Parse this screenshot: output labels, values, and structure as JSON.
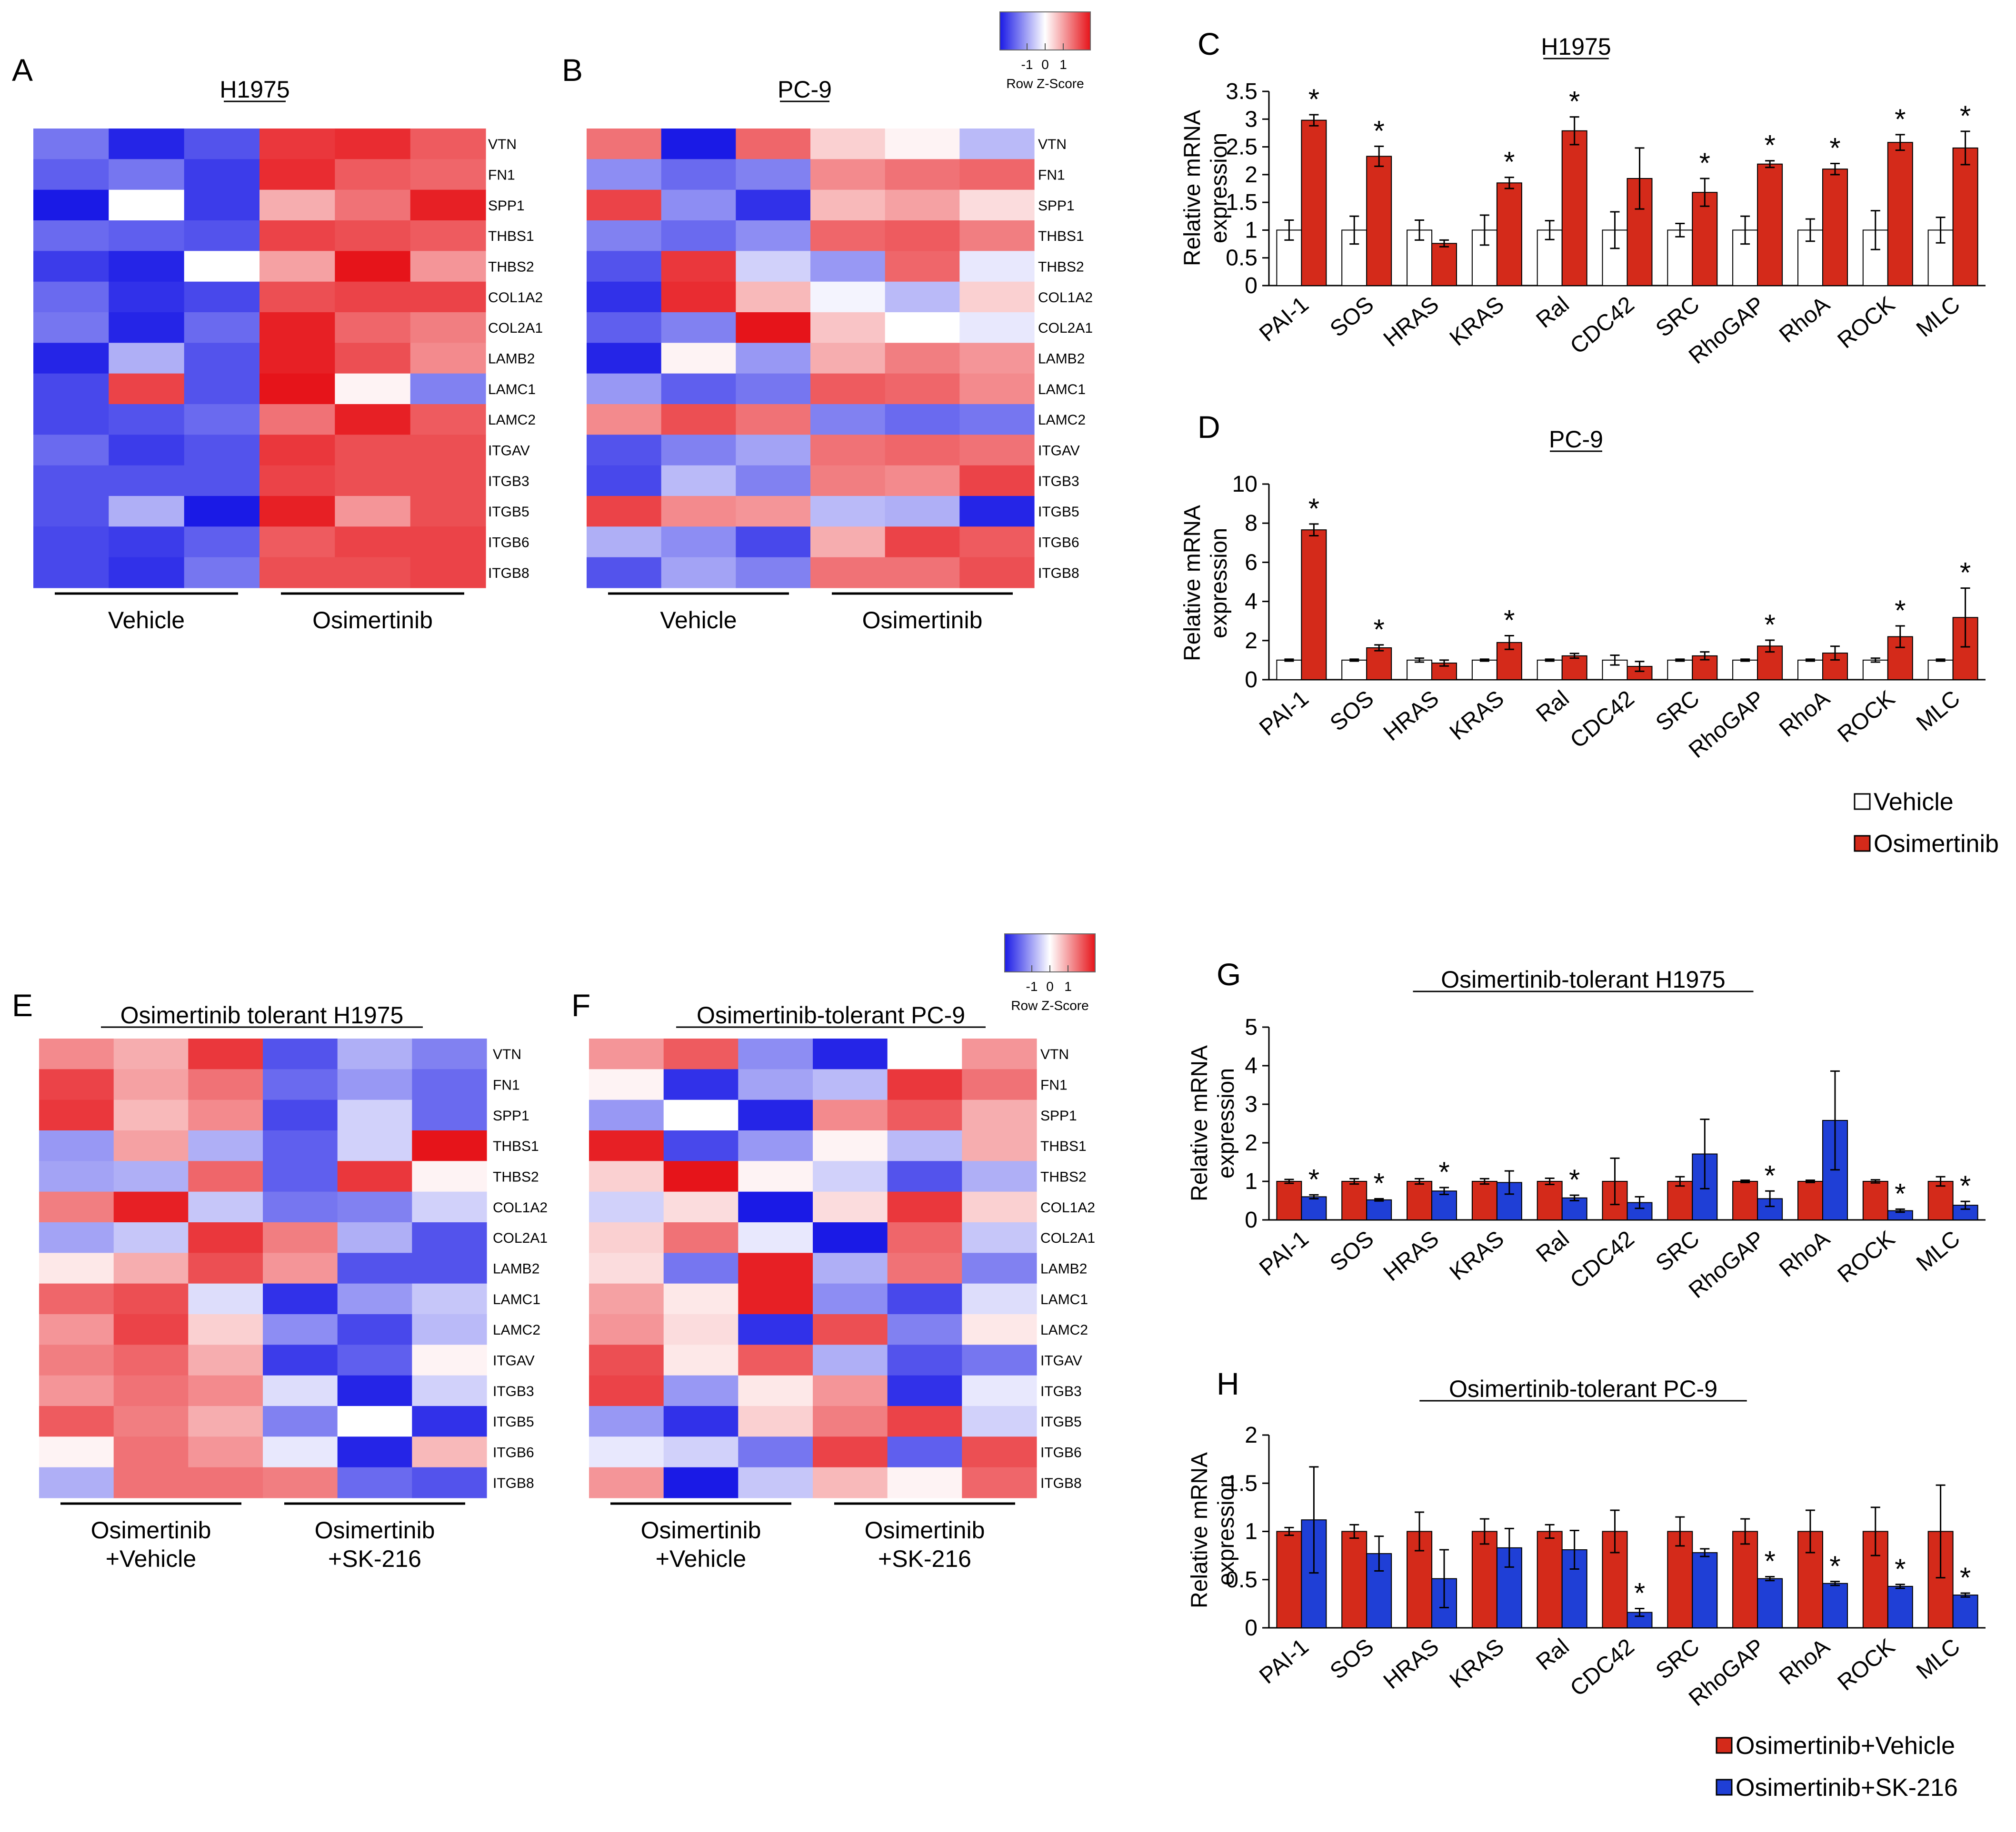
{
  "colors": {
    "low": "#1a1ae6",
    "mid": "#ffffff",
    "high": "#e6141a",
    "vehicle_bar": "#ffffff",
    "osimertinib_bar": "#d42a1a",
    "sk216_bar": "#1f3fd6",
    "axis": "#000000"
  },
  "colorkeys": [
    {
      "label": "Row Z-Score",
      "ticks": [
        "-1",
        "0",
        "1"
      ]
    },
    {
      "label": "Row Z-Score",
      "ticks": [
        "-1",
        "0",
        "1"
      ]
    }
  ],
  "chart_data": [
    {
      "type": "heatmap",
      "panel": "A",
      "title": "H1975",
      "rows": [
        "VTN",
        "FN1",
        "SPP1",
        "THBS1",
        "THBS2",
        "COL1A2",
        "COL2A1",
        "LAMB2",
        "LAMC1",
        "LAMC2",
        "ITGAV",
        "ITGB3",
        "ITGB5",
        "ITGB6",
        "ITGB8"
      ],
      "groups": [
        {
          "label": "Vehicle",
          "columns": 3
        },
        {
          "label": "Osimertinib",
          "columns": 3
        }
      ],
      "values": [
        [
          -0.6,
          -0.95,
          -0.75,
          0.85,
          0.9,
          0.7
        ],
        [
          -0.7,
          -0.6,
          -0.85,
          0.9,
          0.7,
          0.65
        ],
        [
          -1,
          0,
          -0.85,
          0.35,
          0.6,
          0.95
        ],
        [
          -0.65,
          -0.7,
          -0.75,
          0.8,
          0.75,
          0.7
        ],
        [
          -0.85,
          -0.95,
          0,
          0.4,
          1,
          0.45
        ],
        [
          -0.65,
          -0.9,
          -0.8,
          0.75,
          0.8,
          0.8
        ],
        [
          -0.6,
          -0.95,
          -0.65,
          0.95,
          0.65,
          0.55
        ],
        [
          -0.95,
          -0.35,
          -0.75,
          0.95,
          0.75,
          0.5
        ],
        [
          -0.8,
          0.8,
          -0.75,
          1,
          0.05,
          -0.55
        ],
        [
          -0.8,
          -0.75,
          -0.65,
          0.6,
          0.95,
          0.7
        ],
        [
          -0.65,
          -0.85,
          -0.75,
          0.85,
          0.75,
          0.75
        ],
        [
          -0.75,
          -0.75,
          -0.75,
          0.8,
          0.75,
          0.75
        ],
        [
          -0.75,
          -0.35,
          -1,
          0.95,
          0.45,
          0.75
        ],
        [
          -0.8,
          -0.85,
          -0.7,
          0.7,
          0.8,
          0.8
        ],
        [
          -0.8,
          -0.9,
          -0.6,
          0.75,
          0.75,
          0.8
        ]
      ]
    },
    {
      "type": "heatmap",
      "panel": "B",
      "title": "PC-9",
      "rows": [
        "VTN",
        "FN1",
        "SPP1",
        "THBS1",
        "THBS2",
        "COL1A2",
        "COL2A1",
        "LAMB2",
        "LAMC1",
        "LAMC2",
        "ITGAV",
        "ITGB3",
        "ITGB5",
        "ITGB6",
        "ITGB8"
      ],
      "groups": [
        {
          "label": "Vehicle",
          "columns": 3
        },
        {
          "label": "Osimertinib",
          "columns": 3
        }
      ],
      "values": [
        [
          0.6,
          -1,
          0.65,
          0.2,
          0.05,
          -0.3
        ],
        [
          -0.5,
          -0.65,
          -0.55,
          0.5,
          0.6,
          0.65
        ],
        [
          0.8,
          -0.5,
          -0.9,
          0.3,
          0.4,
          0.15
        ],
        [
          -0.55,
          -0.65,
          -0.5,
          0.65,
          0.7,
          0.55
        ],
        [
          -0.75,
          0.85,
          -0.2,
          -0.45,
          0.65,
          -0.1
        ],
        [
          -0.9,
          0.9,
          0.3,
          -0.05,
          -0.3,
          0.2
        ],
        [
          -0.7,
          -0.55,
          1,
          0.25,
          0,
          -0.1
        ],
        [
          -0.95,
          0.05,
          -0.45,
          0.35,
          0.55,
          0.45
        ],
        [
          -0.45,
          -0.7,
          -0.6,
          0.7,
          0.65,
          0.5
        ],
        [
          0.5,
          0.75,
          0.6,
          -0.55,
          -0.65,
          -0.6
        ],
        [
          -0.75,
          -0.55,
          -0.4,
          0.6,
          0.65,
          0.6
        ],
        [
          -0.8,
          -0.3,
          -0.55,
          0.55,
          0.5,
          0.8
        ],
        [
          0.8,
          0.5,
          0.45,
          -0.3,
          -0.35,
          -0.95
        ],
        [
          -0.35,
          -0.5,
          -0.8,
          0.35,
          0.8,
          0.7
        ],
        [
          -0.75,
          -0.4,
          -0.55,
          0.6,
          0.6,
          0.75
        ]
      ]
    },
    {
      "type": "bar",
      "panel": "C",
      "title": "H1975",
      "categories": [
        "PAI-1",
        "SOS",
        "HRAS",
        "KRAS",
        "Ral",
        "CDC42",
        "SRC",
        "RhoGAP",
        "RhoA",
        "ROCK",
        "MLC"
      ],
      "ylabel": "Relative mRNA expression",
      "ylim": [
        0,
        3.5
      ],
      "yticks": [
        "0",
        "0.5",
        "1",
        "1.5",
        "2",
        "2.5",
        "3",
        "3.5"
      ],
      "series": [
        {
          "name": "Vehicle",
          "values": [
            1,
            1,
            1,
            1,
            1,
            1,
            1,
            1,
            1,
            1,
            1
          ],
          "errors": [
            0.18,
            0.25,
            0.18,
            0.27,
            0.17,
            0.33,
            0.12,
            0.25,
            0.2,
            0.35,
            0.23
          ]
        },
        {
          "name": "Osimertinib",
          "values": [
            2.98,
            2.33,
            0.76,
            1.85,
            2.79,
            1.93,
            1.68,
            2.19,
            2.1,
            2.58,
            2.48
          ],
          "errors": [
            0.1,
            0.18,
            0.06,
            0.1,
            0.25,
            0.55,
            0.25,
            0.06,
            0.1,
            0.14,
            0.3
          ]
        }
      ],
      "significant": [
        "Osimertinib",
        [
          true,
          true,
          false,
          true,
          true,
          false,
          true,
          true,
          true,
          true,
          true
        ]
      ]
    },
    {
      "type": "bar",
      "panel": "D",
      "title": "PC-9",
      "categories": [
        "PAI-1",
        "SOS",
        "HRAS",
        "KRAS",
        "Ral",
        "CDC42",
        "SRC",
        "RhoGAP",
        "RhoA",
        "ROCK",
        "MLC"
      ],
      "ylabel": "Relative mRNA expression",
      "ylim": [
        0,
        10
      ],
      "yticks": [
        "0",
        "2",
        "4",
        "6",
        "8",
        "10"
      ],
      "series": [
        {
          "name": "Vehicle",
          "values": [
            1,
            1,
            1,
            1,
            1,
            1,
            1,
            1,
            1,
            1,
            1
          ],
          "errors": [
            0.05,
            0.05,
            0.1,
            0.05,
            0.05,
            0.25,
            0.05,
            0.05,
            0.05,
            0.1,
            0.05
          ]
        },
        {
          "name": "Osimertinib",
          "values": [
            7.66,
            1.63,
            0.85,
            1.9,
            1.22,
            0.68,
            1.22,
            1.72,
            1.36,
            2.2,
            3.18
          ],
          "errors": [
            0.3,
            0.15,
            0.15,
            0.35,
            0.12,
            0.25,
            0.2,
            0.3,
            0.35,
            0.55,
            1.5
          ]
        }
      ],
      "significant": [
        "Osimertinib",
        [
          true,
          true,
          false,
          true,
          false,
          false,
          false,
          true,
          false,
          true,
          true
        ]
      ],
      "legend": [
        "Vehicle",
        "Osimertinib"
      ]
    },
    {
      "type": "heatmap",
      "panel": "E",
      "title": "Osimertinib tolerant H1975",
      "rows": [
        "VTN",
        "FN1",
        "SPP1",
        "THBS1",
        "THBS2",
        "COL1A2",
        "COL2A1",
        "LAMB2",
        "LAMC1",
        "LAMC2",
        "ITGAV",
        "ITGB3",
        "ITGB5",
        "ITGB6",
        "ITGB8"
      ],
      "groups": [
        {
          "label": "Osimertinib +Vehicle",
          "columns": 3
        },
        {
          "label": "Osimertinib +SK-216",
          "columns": 3
        }
      ],
      "values": [
        [
          0.5,
          0.35,
          0.85,
          -0.75,
          -0.35,
          -0.55
        ],
        [
          0.8,
          0.4,
          0.6,
          -0.65,
          -0.45,
          -0.65
        ],
        [
          0.85,
          0.3,
          0.5,
          -0.8,
          -0.2,
          -0.65
        ],
        [
          -0.45,
          0.4,
          -0.35,
          -0.7,
          -0.2,
          1
        ],
        [
          -0.4,
          -0.35,
          0.65,
          -0.7,
          0.85,
          0.05
        ],
        [
          0.55,
          0.95,
          -0.25,
          -0.6,
          -0.55,
          -0.2
        ],
        [
          -0.4,
          -0.25,
          0.85,
          0.55,
          -0.35,
          -0.75
        ],
        [
          0.1,
          0.35,
          0.75,
          0.45,
          -0.75,
          -0.75
        ],
        [
          0.65,
          0.75,
          -0.15,
          -0.9,
          -0.45,
          -0.25
        ],
        [
          0.45,
          0.8,
          0.2,
          -0.5,
          -0.8,
          -0.3
        ],
        [
          0.55,
          0.65,
          0.35,
          -0.85,
          -0.7,
          0.05
        ],
        [
          0.45,
          0.6,
          0.5,
          -0.15,
          -0.95,
          -0.2
        ],
        [
          0.7,
          0.55,
          0.35,
          -0.55,
          0,
          -0.9
        ],
        [
          0.05,
          0.6,
          0.45,
          -0.1,
          -0.95,
          0.3
        ],
        [
          -0.35,
          0.6,
          0.6,
          0.55,
          -0.65,
          -0.75
        ]
      ]
    },
    {
      "type": "heatmap",
      "panel": "F",
      "title": "Osimertinib-tolerant PC-9",
      "rows": [
        "VTN",
        "FN1",
        "SPP1",
        "THBS1",
        "THBS2",
        "COL1A2",
        "COL2A1",
        "LAMB2",
        "LAMC1",
        "LAMC2",
        "ITGAV",
        "ITGB3",
        "ITGB5",
        "ITGB6",
        "ITGB8"
      ],
      "groups": [
        {
          "label": "Osimertinib +Vehicle",
          "columns": 3
        },
        {
          "label": "Osimertinib +SK-216",
          "columns": 3
        }
      ],
      "values": [
        [
          0.45,
          0.7,
          -0.5,
          -0.95,
          0,
          0.45
        ],
        [
          0.05,
          -0.9,
          -0.4,
          -0.3,
          0.85,
          0.6
        ],
        [
          -0.45,
          0,
          -0.95,
          0.5,
          0.7,
          0.35
        ],
        [
          0.95,
          -0.8,
          -0.45,
          0.05,
          -0.3,
          0.35
        ],
        [
          0.2,
          1,
          0.05,
          -0.2,
          -0.75,
          -0.35
        ],
        [
          -0.2,
          0.15,
          -1,
          0.15,
          0.85,
          0.2
        ],
        [
          0.2,
          0.6,
          -0.1,
          -1,
          0.65,
          -0.25
        ],
        [
          0.15,
          -0.6,
          0.95,
          -0.35,
          0.6,
          -0.55
        ],
        [
          0.4,
          0.1,
          0.95,
          -0.5,
          -0.8,
          -0.15
        ],
        [
          0.45,
          0.15,
          -0.9,
          0.75,
          -0.55,
          0.1
        ],
        [
          0.75,
          0.1,
          0.7,
          -0.35,
          -0.75,
          -0.6
        ],
        [
          0.8,
          -0.45,
          0.1,
          0.45,
          -0.9,
          -0.1
        ],
        [
          -0.45,
          -0.9,
          0.2,
          0.55,
          0.8,
          -0.2
        ],
        [
          -0.1,
          -0.2,
          -0.6,
          0.8,
          -0.7,
          0.75
        ],
        [
          0.45,
          -1,
          -0.25,
          0.3,
          0.05,
          0.65
        ]
      ]
    },
    {
      "type": "bar",
      "panel": "G",
      "title": "Osimertinib-tolerant H1975",
      "categories": [
        "PAI-1",
        "SOS",
        "HRAS",
        "KRAS",
        "Ral",
        "CDC42",
        "SRC",
        "RhoGAP",
        "RhoA",
        "ROCK",
        "MLC"
      ],
      "ylabel": "Relative mRNA expression",
      "ylim": [
        0,
        5
      ],
      "yticks": [
        "0",
        "1",
        "2",
        "3",
        "4",
        "5"
      ],
      "series": [
        {
          "name": "Osimertinib+Vehicle",
          "values": [
            1,
            1,
            1,
            1,
            1,
            1,
            1,
            1,
            1,
            1,
            1
          ],
          "errors": [
            0.05,
            0.07,
            0.07,
            0.07,
            0.08,
            0.6,
            0.12,
            0.03,
            0.03,
            0.04,
            0.12
          ]
        },
        {
          "name": "Osimertinib+SK-216",
          "values": [
            0.6,
            0.52,
            0.75,
            0.97,
            0.57,
            0.45,
            1.71,
            0.55,
            2.58,
            0.24,
            0.38
          ],
          "errors": [
            0.05,
            0.03,
            0.09,
            0.3,
            0.07,
            0.15,
            0.9,
            0.2,
            1.28,
            0.04,
            0.1
          ]
        }
      ],
      "significant": [
        "Osimertinib+SK-216",
        [
          true,
          true,
          true,
          false,
          true,
          false,
          false,
          true,
          false,
          true,
          true
        ]
      ]
    },
    {
      "type": "bar",
      "panel": "H",
      "title": "Osimertinib-tolerant PC-9",
      "categories": [
        "PAI-1",
        "SOS",
        "HRAS",
        "KRAS",
        "Ral",
        "CDC42",
        "SRC",
        "RhoGAP",
        "RhoA",
        "ROCK",
        "MLC"
      ],
      "ylabel": "Relative mRNA expression",
      "ylim": [
        0,
        2
      ],
      "yticks": [
        "0",
        "0.5",
        "1",
        "1.5",
        "2"
      ],
      "series": [
        {
          "name": "Osimertinib+Vehicle",
          "values": [
            1,
            1,
            1,
            1,
            1,
            1,
            1,
            1,
            1,
            1,
            1
          ],
          "errors": [
            0.04,
            0.07,
            0.2,
            0.13,
            0.07,
            0.22,
            0.15,
            0.13,
            0.22,
            0.25,
            0.48
          ]
        },
        {
          "name": "Osimertinib+SK-216",
          "values": [
            1.12,
            0.77,
            0.51,
            0.83,
            0.81,
            0.16,
            0.78,
            0.51,
            0.46,
            0.43,
            0.34
          ],
          "errors": [
            0.55,
            0.18,
            0.3,
            0.2,
            0.2,
            0.04,
            0.04,
            0.02,
            0.02,
            0.02,
            0.02
          ]
        }
      ],
      "significant": [
        "Osimertinib+SK-216",
        [
          false,
          false,
          false,
          false,
          false,
          true,
          false,
          true,
          true,
          true,
          true
        ]
      ],
      "legend": [
        "Osimertinib+Vehicle",
        "Osimertinib+SK-216"
      ]
    }
  ]
}
